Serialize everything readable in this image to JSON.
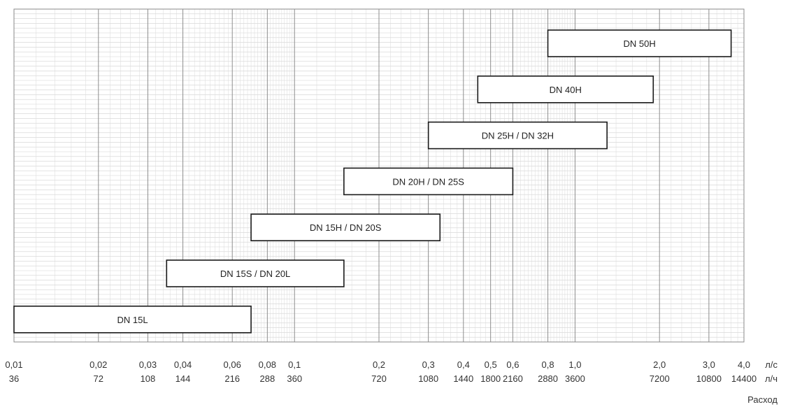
{
  "chart_data": {
    "type": "range-bar",
    "x_scale": "log",
    "xlim": [
      0.01,
      4.0
    ],
    "grid": true,
    "axis_title": "Расход",
    "units": {
      "primary": "л/с",
      "secondary": "л/ч"
    },
    "ticks": [
      {
        "value": 0.01,
        "label": "0,01",
        "label2": "36"
      },
      {
        "value": 0.02,
        "label": "0,02",
        "label2": "72"
      },
      {
        "value": 0.03,
        "label": "0,03",
        "label2": "108"
      },
      {
        "value": 0.04,
        "label": "0,04",
        "label2": "144"
      },
      {
        "value": 0.06,
        "label": "0,06",
        "label2": "216"
      },
      {
        "value": 0.08,
        "label": "0,08",
        "label2": "288"
      },
      {
        "value": 0.1,
        "label": "0,1",
        "label2": "360"
      },
      {
        "value": 0.2,
        "label": "0,2",
        "label2": "720"
      },
      {
        "value": 0.3,
        "label": "0,3",
        "label2": "1080"
      },
      {
        "value": 0.4,
        "label": "0,4",
        "label2": "1440"
      },
      {
        "value": 0.5,
        "label": "0,5",
        "label2": "1800"
      },
      {
        "value": 0.6,
        "label": "0,6",
        "label2": "2160"
      },
      {
        "value": 0.8,
        "label": "0,8",
        "label2": "2880"
      },
      {
        "value": 1.0,
        "label": "1,0",
        "label2": "3600"
      },
      {
        "value": 2.0,
        "label": "2,0",
        "label2": "7200"
      },
      {
        "value": 3.0,
        "label": "3,0",
        "label2": "10800"
      },
      {
        "value": 4.0,
        "label": "4,0",
        "label2": "14400"
      }
    ],
    "ranges": [
      {
        "label": "DN 50H",
        "min": 0.8,
        "max": 3.6
      },
      {
        "label": "DN 40H",
        "min": 0.45,
        "max": 1.9
      },
      {
        "label": "DN 25H / DN 32H",
        "min": 0.3,
        "max": 1.3
      },
      {
        "label": "DN 20H / DN 25S",
        "min": 0.15,
        "max": 0.6
      },
      {
        "label": "DN 15H / DN 20S",
        "min": 0.07,
        "max": 0.33
      },
      {
        "label": "DN 15S / DN 20L",
        "min": 0.035,
        "max": 0.15
      },
      {
        "label": "DN 15L",
        "min": 0.01,
        "max": 0.07
      }
    ]
  }
}
